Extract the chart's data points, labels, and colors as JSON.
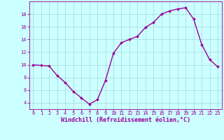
{
  "x": [
    0,
    1,
    2,
    3,
    4,
    5,
    6,
    7,
    8,
    9,
    10,
    11,
    12,
    13,
    14,
    15,
    16,
    17,
    18,
    19,
    20,
    21,
    22,
    23
  ],
  "y": [
    10.0,
    9.9,
    9.8,
    8.3,
    7.2,
    5.8,
    4.8,
    3.8,
    4.5,
    7.5,
    11.8,
    13.5,
    14.0,
    14.5,
    15.9,
    16.7,
    18.0,
    18.5,
    18.8,
    19.0,
    17.2,
    13.2,
    10.8,
    9.7
  ],
  "line_color": "#990099",
  "marker": "D",
  "marker_size": 2.0,
  "linewidth": 1.0,
  "xlabel": "Windchill (Refroidissement éolien,°C)",
  "xlabel_fontsize": 6.0,
  "bg_color": "#ccffff",
  "grid_color": "#aadddd",
  "tick_color": "#990099",
  "label_color": "#990099",
  "ylim": [
    3,
    20
  ],
  "xlim": [
    -0.5,
    23.5
  ],
  "yticks": [
    4,
    6,
    8,
    10,
    12,
    14,
    16,
    18
  ],
  "xticks": [
    0,
    1,
    2,
    3,
    4,
    5,
    6,
    7,
    8,
    9,
    10,
    11,
    12,
    13,
    14,
    15,
    16,
    17,
    18,
    19,
    20,
    21,
    22,
    23
  ],
  "xtick_labels": [
    "0",
    "1",
    "2",
    "3",
    "4",
    "5",
    "6",
    "7",
    "8",
    "9",
    "10",
    "11",
    "12",
    "13",
    "14",
    "15",
    "16",
    "17",
    "18",
    "19",
    "20",
    "21",
    "22",
    "23"
  ],
  "tick_fontsize": 5.0,
  "spine_color": "#990099"
}
